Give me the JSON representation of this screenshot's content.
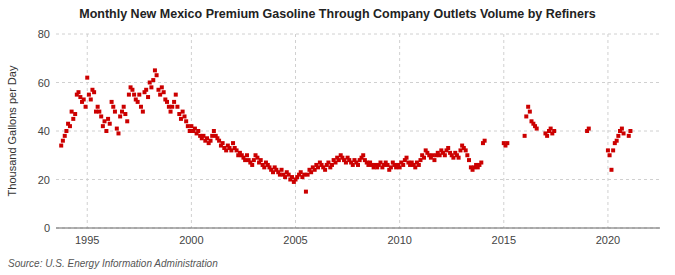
{
  "chart_data": {
    "type": "scatter",
    "title": "Monthly New Mexico Premium Gasoline Through Company Outlets Volume by Refiners",
    "ylabel": "Thousand Gallons per Day",
    "annotations": [
      "Source: U.S. Energy Information Administration"
    ],
    "color": "#CC0000",
    "marker": "square",
    "grid": true,
    "xlim": [
      1993.5,
      2022.5
    ],
    "xticks": [
      1995,
      2000,
      2005,
      2010,
      2015,
      2020
    ],
    "ylim": [
      0,
      80
    ],
    "yticks": [
      0,
      20,
      40,
      60,
      80
    ],
    "x": [
      1993.75,
      1993.83,
      1993.92,
      1994.0,
      1994.08,
      1994.17,
      1994.25,
      1994.33,
      1994.42,
      1994.5,
      1994.58,
      1994.67,
      1994.75,
      1994.83,
      1994.92,
      1995.0,
      1995.08,
      1995.17,
      1995.25,
      1995.33,
      1995.42,
      1995.5,
      1995.58,
      1995.67,
      1995.75,
      1995.83,
      1995.92,
      1996.0,
      1996.08,
      1996.17,
      1996.25,
      1996.33,
      1996.42,
      1996.5,
      1996.58,
      1996.67,
      1996.75,
      1996.83,
      1996.92,
      1997.0,
      1997.08,
      1997.17,
      1997.25,
      1997.33,
      1997.42,
      1997.5,
      1997.58,
      1997.67,
      1997.75,
      1997.83,
      1997.92,
      1998.0,
      1998.08,
      1998.17,
      1998.25,
      1998.33,
      1998.42,
      1998.5,
      1998.58,
      1998.67,
      1998.75,
      1998.83,
      1998.92,
      1999.0,
      1999.08,
      1999.17,
      1999.25,
      1999.33,
      1999.42,
      1999.5,
      1999.58,
      1999.67,
      1999.75,
      1999.83,
      1999.92,
      2000.0,
      2000.08,
      2000.17,
      2000.25,
      2000.33,
      2000.42,
      2000.5,
      2000.58,
      2000.67,
      2000.75,
      2000.83,
      2000.92,
      2001.0,
      2001.08,
      2001.17,
      2001.25,
      2001.33,
      2001.42,
      2001.5,
      2001.58,
      2001.67,
      2001.75,
      2001.83,
      2001.92,
      2002.0,
      2002.08,
      2002.17,
      2002.25,
      2002.33,
      2002.42,
      2002.5,
      2002.58,
      2002.67,
      2002.75,
      2002.83,
      2002.92,
      2003.0,
      2003.08,
      2003.17,
      2003.25,
      2003.33,
      2003.42,
      2003.5,
      2003.58,
      2003.67,
      2003.75,
      2003.83,
      2003.92,
      2004.0,
      2004.08,
      2004.17,
      2004.25,
      2004.33,
      2004.42,
      2004.5,
      2004.58,
      2004.67,
      2004.75,
      2004.83,
      2004.92,
      2005.0,
      2005.08,
      2005.17,
      2005.25,
      2005.33,
      2005.42,
      2005.5,
      2005.58,
      2005.67,
      2005.75,
      2005.83,
      2005.92,
      2006.0,
      2006.08,
      2006.17,
      2006.25,
      2006.33,
      2006.42,
      2006.5,
      2006.58,
      2006.67,
      2006.75,
      2006.83,
      2006.92,
      2007.0,
      2007.08,
      2007.17,
      2007.25,
      2007.33,
      2007.42,
      2007.5,
      2007.58,
      2007.67,
      2007.75,
      2007.83,
      2007.92,
      2008.0,
      2008.08,
      2008.17,
      2008.25,
      2008.33,
      2008.42,
      2008.5,
      2008.58,
      2008.67,
      2008.75,
      2008.83,
      2008.92,
      2009.0,
      2009.08,
      2009.17,
      2009.25,
      2009.33,
      2009.42,
      2009.5,
      2009.58,
      2009.67,
      2009.75,
      2009.83,
      2009.92,
      2010.0,
      2010.08,
      2010.17,
      2010.25,
      2010.33,
      2010.42,
      2010.5,
      2010.58,
      2010.67,
      2010.75,
      2010.83,
      2010.92,
      2011.0,
      2011.08,
      2011.17,
      2011.25,
      2011.33,
      2011.42,
      2011.5,
      2011.58,
      2011.67,
      2011.75,
      2011.83,
      2011.92,
      2012.0,
      2012.08,
      2012.17,
      2012.25,
      2012.33,
      2012.42,
      2012.5,
      2012.58,
      2012.67,
      2012.75,
      2012.83,
      2012.92,
      2013.0,
      2013.08,
      2013.17,
      2013.25,
      2013.33,
      2013.42,
      2013.5,
      2013.58,
      2013.67,
      2013.75,
      2013.83,
      2013.92,
      2014.0,
      2014.08,
      2015.0,
      2015.08,
      2015.17,
      2016.0,
      2016.08,
      2016.17,
      2016.25,
      2016.33,
      2016.42,
      2016.5,
      2016.58,
      2017.0,
      2017.08,
      2017.17,
      2017.25,
      2017.33,
      2017.42,
      2019.0,
      2019.08,
      2020.0,
      2020.08,
      2020.17,
      2020.25,
      2020.33,
      2020.42,
      2020.5,
      2020.58,
      2020.67,
      2020.75,
      2021.0,
      2021.08
    ],
    "values": [
      34,
      36,
      38,
      40,
      43,
      42,
      48,
      45,
      47,
      55,
      56,
      54,
      52,
      53,
      50,
      62,
      55,
      53,
      57,
      56,
      48,
      50,
      48,
      46,
      42,
      44,
      40,
      45,
      43,
      52,
      50,
      48,
      41,
      39,
      46,
      48,
      50,
      47,
      44,
      55,
      58,
      57,
      55,
      53,
      52,
      55,
      50,
      48,
      56,
      57,
      54,
      60,
      58,
      61,
      65,
      63,
      57,
      55,
      58,
      56,
      53,
      52,
      50,
      48,
      50,
      52,
      55,
      50,
      47,
      45,
      48,
      46,
      44,
      42,
      40,
      42,
      40,
      41,
      39,
      40,
      38,
      37,
      38,
      36,
      37,
      35,
      36,
      38,
      40,
      38,
      37,
      36,
      34,
      35,
      33,
      32,
      34,
      33,
      32,
      35,
      33,
      32,
      30,
      31,
      30,
      29,
      28,
      30,
      28,
      27,
      26,
      28,
      30,
      29,
      27,
      28,
      26,
      25,
      27,
      26,
      25,
      24,
      23,
      25,
      24,
      23,
      22,
      24,
      22,
      21,
      23,
      22,
      20,
      21,
      19,
      20,
      21,
      22,
      23,
      21,
      22,
      15,
      22,
      24,
      23,
      25,
      24,
      26,
      25,
      27,
      26,
      25,
      24,
      26,
      27,
      25,
      26,
      28,
      27,
      29,
      28,
      30,
      29,
      28,
      27,
      29,
      28,
      27,
      26,
      28,
      27,
      26,
      28,
      29,
      30,
      28,
      27,
      26,
      27,
      26,
      25,
      26,
      25,
      26,
      27,
      25,
      26,
      27,
      26,
      24,
      25,
      27,
      26,
      25,
      26,
      25,
      27,
      26,
      28,
      29,
      27,
      26,
      27,
      26,
      25,
      27,
      26,
      28,
      30,
      29,
      32,
      31,
      30,
      29,
      30,
      28,
      30,
      31,
      30,
      32,
      31,
      30,
      32,
      33,
      31,
      30,
      29,
      31,
      30,
      29,
      32,
      34,
      33,
      32,
      30,
      28,
      25,
      24,
      25,
      26,
      25,
      26,
      27,
      35,
      36,
      35,
      34,
      35,
      38,
      46,
      50,
      48,
      44,
      43,
      42,
      41,
      39,
      38,
      40,
      41,
      39,
      40,
      40,
      41,
      32,
      30,
      24,
      32,
      35,
      36,
      38,
      40,
      41,
      39,
      38,
      40
    ]
  }
}
